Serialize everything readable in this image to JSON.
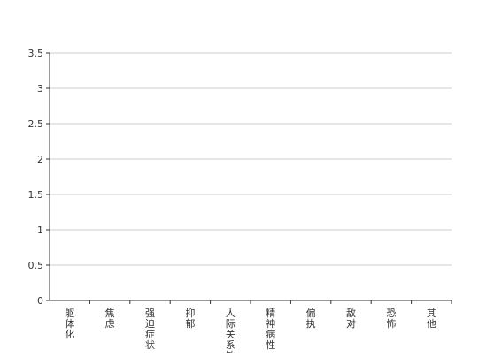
{
  "chart_data": {
    "type": "bar",
    "title": "",
    "xlabel": "",
    "ylabel": "",
    "categories": [
      "躯体化",
      "焦虑",
      "强迫症状",
      "抑郁",
      "人际关系敏感",
      "精神病性",
      "偏执",
      "敌对",
      "恐怖",
      "其他"
    ],
    "series": [
      {
        "values": [
          null,
          null,
          null,
          null,
          null,
          null,
          null,
          null,
          null,
          null
        ]
      }
    ],
    "ylim": [
      0,
      3.5
    ],
    "yticks": [
      0,
      0.5,
      1,
      1.5,
      2,
      2.5,
      3,
      3.5
    ],
    "ytick_labels": [
      "0",
      "0.5",
      "1",
      "1.5",
      "2",
      "2.5",
      "3",
      "3.5"
    ],
    "grid": true,
    "legend": "none",
    "colors": {
      "axis": "#333333",
      "grid": "#cccccc",
      "text": "#333333",
      "bar": "#5b9bd5"
    }
  }
}
